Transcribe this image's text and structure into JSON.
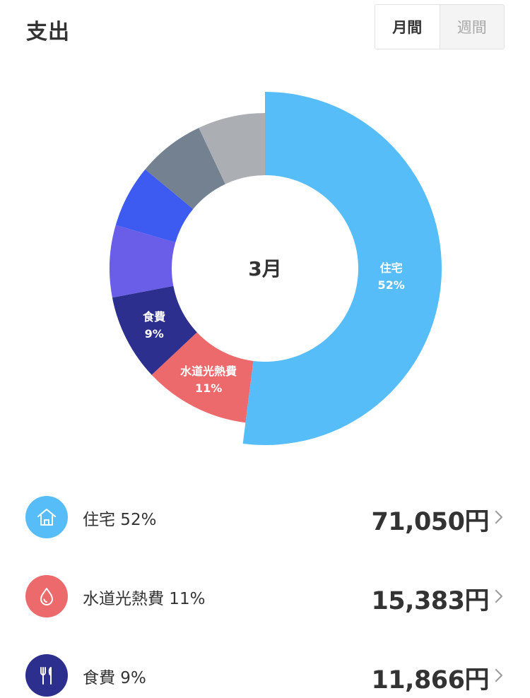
{
  "header": {
    "title": "支出",
    "tabs": [
      {
        "label": "月間",
        "active": true
      },
      {
        "label": "週間",
        "active": false
      }
    ]
  },
  "chart_data": {
    "type": "pie",
    "center_label": "3月",
    "slices": [
      {
        "name": "住宅",
        "percent": 52,
        "color": "#57bdf8",
        "label": "住宅",
        "label_pct": "52%"
      },
      {
        "name": "水道光熱費",
        "percent": 11,
        "color": "#ec6a6c",
        "label": "水道光熱費",
        "label_pct": "11%"
      },
      {
        "name": "食費",
        "percent": 9,
        "color": "#2c2f8e",
        "label": "食費",
        "label_pct": "9%"
      },
      {
        "name": "",
        "percent": 7.5,
        "color": "#6a5ee8",
        "label": "",
        "label_pct": ""
      },
      {
        "name": "",
        "percent": 6.5,
        "color": "#3d5af1",
        "label": "",
        "label_pct": ""
      },
      {
        "name": "",
        "percent": 7,
        "color": "#748190",
        "label": "",
        "label_pct": ""
      },
      {
        "name": "",
        "percent": 7,
        "color": "#abaeb3",
        "label": "",
        "label_pct": ""
      }
    ]
  },
  "list": [
    {
      "category": "住宅 52%",
      "amount": "71,050円",
      "icon": "house-icon",
      "color": "#57bdf8"
    },
    {
      "category": "水道光熱費 11%",
      "amount": "15,383円",
      "icon": "water-drop-icon",
      "color": "#ec6a6c"
    },
    {
      "category": "食費 9%",
      "amount": "11,866円",
      "icon": "fork-knife-icon",
      "color": "#2c2f8e"
    }
  ]
}
